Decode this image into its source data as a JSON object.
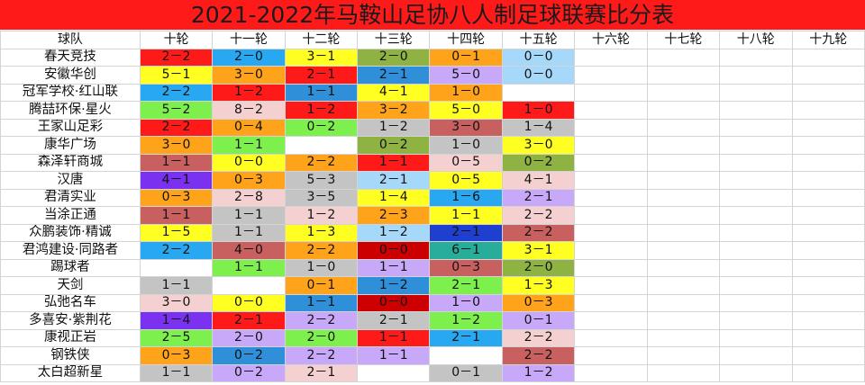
{
  "title": "2021-2022年马鞍山足协八人制足球联赛比分表",
  "header": [
    "球队",
    "十轮",
    "十一轮",
    "十二轮",
    "十三轮",
    "十四轮",
    "十五轮",
    "十六轮",
    "十七轮",
    "十八轮",
    "十九轮"
  ],
  "colors": {
    "red": "#ff1a1a",
    "blue": "#29a8f2",
    "yellow": "#ffff22",
    "green": "#7ef04e",
    "orange": "#ffa31a",
    "lblue": "#a6d8fa",
    "olive": "#8fb342",
    "salmon": "#f5d0d0",
    "purple": "#7a32f0",
    "lpurple": "#c8a8f8",
    "gray": "#c4c4c4",
    "rose": "#c86060",
    "teal": "#27ad99",
    "dred": "#cc0000",
    "navy": "#1f3fd0",
    "dgreen": "#1c9e3e",
    "sblue": "#2f8fd8"
  },
  "rows": [
    {
      "team": "春天竞技",
      "scores": [
        "2－2",
        "2－0",
        "3－1",
        "2－0",
        "0－1",
        "0－0",
        "",
        "",
        "",
        ""
      ],
      "colors": [
        "red",
        "blue",
        "yellow",
        "olive",
        "orange",
        "lblue",
        "white",
        "white",
        "white",
        "white"
      ]
    },
    {
      "team": "安徽华创",
      "scores": [
        "5－1",
        "3－0",
        "2－1",
        "2－1",
        "5－0",
        "0－0",
        "",
        "",
        "",
        ""
      ],
      "colors": [
        "yellow",
        "orange",
        "red",
        "sblue",
        "lpurple",
        "lblue",
        "white",
        "white",
        "white",
        "white"
      ]
    },
    {
      "team": "冠军学校·红山联",
      "scores": [
        "2－2",
        "1－2",
        "1－1",
        "4－1",
        "1－0",
        "",
        "",
        "",
        "",
        ""
      ],
      "colors": [
        "blue",
        "red",
        "sblue",
        "yellow",
        "orange",
        "white",
        "white",
        "white",
        "white",
        "white"
      ]
    },
    {
      "team": "腾喆环保·星火",
      "scores": [
        "5－2",
        "8－2",
        "1－2",
        "3－2",
        "5－0",
        "1－0",
        "",
        "",
        "",
        ""
      ],
      "colors": [
        "green",
        "salmon",
        "red",
        "orange",
        "yellow",
        "red",
        "white",
        "white",
        "white",
        "white"
      ]
    },
    {
      "team": "王家山足彩",
      "scores": [
        "2－2",
        "0－4",
        "0－2",
        "1－2",
        "3－0",
        "1－4",
        "",
        "",
        "",
        ""
      ],
      "colors": [
        "red",
        "orange",
        "green",
        "gray",
        "rose",
        "gray",
        "white",
        "white",
        "white",
        "white"
      ]
    },
    {
      "team": "康华广场",
      "scores": [
        "3－0",
        "1－1",
        "",
        "0－2",
        "1－0",
        "3－0",
        "",
        "",
        "",
        ""
      ],
      "colors": [
        "orange",
        "green",
        "white",
        "olive",
        "gray",
        "yellow",
        "white",
        "white",
        "white",
        "white"
      ]
    },
    {
      "team": "森泽轩商城",
      "scores": [
        "1－1",
        "0－0",
        "2－2",
        "1－1",
        "0－5",
        "0－2",
        "",
        "",
        "",
        ""
      ],
      "colors": [
        "rose",
        "yellow",
        "orange",
        "red",
        "salmon",
        "olive",
        "white",
        "white",
        "white",
        "white"
      ]
    },
    {
      "team": "汉唐",
      "scores": [
        "4－1",
        "0－3",
        "5－3",
        "2－1",
        "0－5",
        "4－1",
        "",
        "",
        "",
        ""
      ],
      "colors": [
        "purple",
        "orange",
        "gray",
        "lblue",
        "yellow",
        "salmon",
        "white",
        "white",
        "white",
        "white"
      ]
    },
    {
      "team": "君清实业",
      "scores": [
        "0－3",
        "2－8",
        "3－5",
        "1－4",
        "1－6",
        "2－1",
        "",
        "",
        "",
        ""
      ],
      "colors": [
        "orange",
        "salmon",
        "gray",
        "yellow",
        "blue",
        "lpurple",
        "white",
        "white",
        "white",
        "white"
      ]
    },
    {
      "team": "当涂正通",
      "scores": [
        "1－1",
        "1－1",
        "1－2",
        "2－3",
        "1－1",
        "2－2",
        "",
        "",
        "",
        ""
      ],
      "colors": [
        "rose",
        "gray",
        "salmon",
        "orange",
        "yellow",
        "salmon",
        "white",
        "white",
        "white",
        "white"
      ]
    },
    {
      "team": "众鹏装饰·精诚",
      "scores": [
        "1－5",
        "1－1",
        "1－3",
        "1－2",
        "2－1",
        "2－2",
        "",
        "",
        "",
        ""
      ],
      "colors": [
        "yellow",
        "gray",
        "yellow",
        "lblue",
        "navy",
        "rose",
        "white",
        "white",
        "white",
        "white"
      ]
    },
    {
      "team": "君鸿建设·同路者",
      "scores": [
        "2－2",
        "4－0",
        "2－2",
        "0－0",
        "6－1",
        "3－1",
        "",
        "",
        "",
        ""
      ],
      "colors": [
        "blue",
        "rose",
        "orange",
        "dred",
        "teal",
        "yellow",
        "white",
        "white",
        "white",
        "white"
      ]
    },
    {
      "team": "踢球者",
      "scores": [
        "",
        "1－1",
        "1－0",
        "1－1",
        "0－3",
        "2－0",
        "",
        "",
        "",
        ""
      ],
      "colors": [
        "white",
        "green",
        "gray",
        "lpurple",
        "rose",
        "olive",
        "white",
        "white",
        "white",
        "white"
      ]
    },
    {
      "team": "天剑",
      "scores": [
        "1－1",
        "",
        "0－1",
        "1－2",
        "2－1",
        "1－3",
        "",
        "",
        "",
        ""
      ],
      "colors": [
        "gray",
        "white",
        "orange",
        "sblue",
        "green",
        "yellow",
        "white",
        "white",
        "white",
        "white"
      ]
    },
    {
      "team": "弘弛名车",
      "scores": [
        "3－0",
        "0－0",
        "1－1",
        "0－0",
        "1－0",
        "0－3",
        "",
        "",
        "",
        ""
      ],
      "colors": [
        "salmon",
        "yellow",
        "sblue",
        "dred",
        "lpurple",
        "orange",
        "white",
        "white",
        "white",
        "white"
      ]
    },
    {
      "team": "多喜安·紫荆花",
      "scores": [
        "1－4",
        "2－1",
        "2－2",
        "2－1",
        "1－2",
        "0－1",
        "",
        "",
        "",
        ""
      ],
      "colors": [
        "purple",
        "red",
        "lpurple",
        "gray",
        "green",
        "lpurple",
        "white",
        "white",
        "white",
        "white"
      ]
    },
    {
      "team": "康视正岩",
      "scores": [
        "2－5",
        "2－0",
        "2－0",
        "1－1",
        "2－1",
        "2－2",
        "",
        "",
        "",
        ""
      ],
      "colors": [
        "green",
        "lpurple",
        "green",
        "red",
        "blue",
        "salmon",
        "white",
        "white",
        "white",
        "white"
      ]
    },
    {
      "team": "钢铁侠",
      "scores": [
        "0－3",
        "0－2",
        "2－2",
        "1－1",
        "",
        "2－2",
        "",
        "",
        "",
        ""
      ],
      "colors": [
        "orange",
        "sblue",
        "lpurple",
        "lpurple",
        "white",
        "rose",
        "white",
        "white",
        "white",
        "white"
      ]
    },
    {
      "team": "太白超新星",
      "scores": [
        "1－1",
        "0－2",
        "2－1",
        "",
        "0－1",
        "1－2",
        "",
        "",
        "",
        ""
      ],
      "colors": [
        "gray",
        "lpurple",
        "salmon",
        "white",
        "gray",
        "lpurple",
        "white",
        "white",
        "white",
        "white"
      ]
    }
  ]
}
